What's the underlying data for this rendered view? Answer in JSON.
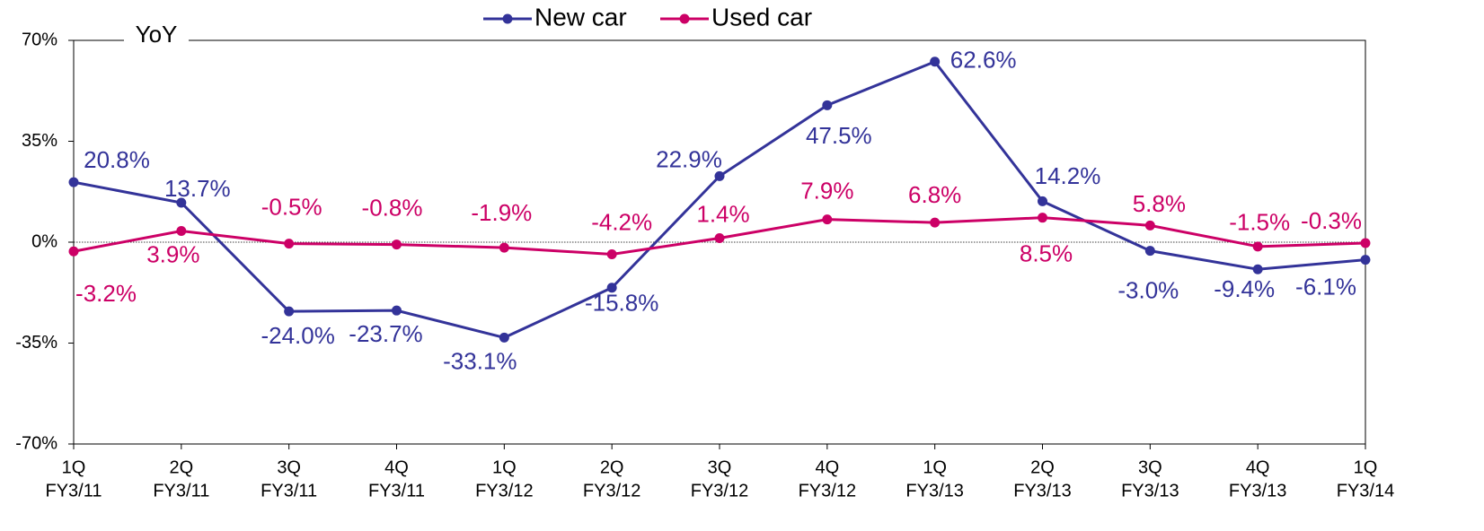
{
  "chart_data": {
    "type": "line",
    "y_label": "YoY",
    "categories": [
      [
        "1Q",
        "FY3/11"
      ],
      [
        "2Q",
        "FY3/11"
      ],
      [
        "3Q",
        "FY3/11"
      ],
      [
        "4Q",
        "FY3/11"
      ],
      [
        "1Q",
        "FY3/12"
      ],
      [
        "2Q",
        "FY3/12"
      ],
      [
        "3Q",
        "FY3/12"
      ],
      [
        "4Q",
        "FY3/12"
      ],
      [
        "1Q",
        "FY3/13"
      ],
      [
        "2Q",
        "FY3/13"
      ],
      [
        "3Q",
        "FY3/13"
      ],
      [
        "4Q",
        "FY3/13"
      ],
      [
        "1Q",
        "FY3/14"
      ]
    ],
    "series": [
      {
        "name": "New car",
        "color": "#333399",
        "values": [
          20.8,
          13.7,
          -24.0,
          -23.7,
          -33.1,
          -15.8,
          22.9,
          47.5,
          62.6,
          14.2,
          -3.0,
          -9.4,
          -6.1
        ],
        "value_labels": [
          "20.8%",
          "13.7%",
          "-24.0%",
          "-23.7%",
          "-33.1%",
          "-15.8%",
          "22.9%",
          "47.5%",
          "62.6%",
          "14.2%",
          "-3.0%",
          "-9.4%",
          "-6.1%"
        ]
      },
      {
        "name": "Used car",
        "color": "#cc0066",
        "values": [
          -3.2,
          3.9,
          -0.5,
          -0.8,
          -1.9,
          -4.2,
          1.4,
          7.9,
          6.8,
          8.5,
          5.8,
          -1.5,
          -0.3
        ],
        "value_labels": [
          "-3.2%",
          "3.9%",
          "-0.5%",
          "-0.8%",
          "-1.9%",
          "-4.2%",
          "1.4%",
          "7.9%",
          "6.8%",
          "8.5%",
          "5.8%",
          "-1.5%",
          "-0.3%"
        ]
      }
    ],
    "ylim": [
      -70,
      70
    ],
    "yticks": [
      {
        "value": -70,
        "label": "-70%"
      },
      {
        "value": -35,
        "label": "-35%"
      },
      {
        "value": 0,
        "label": "0%"
      },
      {
        "value": 35,
        "label": "35%"
      },
      {
        "value": 70,
        "label": "70%"
      }
    ],
    "legend": "top"
  }
}
